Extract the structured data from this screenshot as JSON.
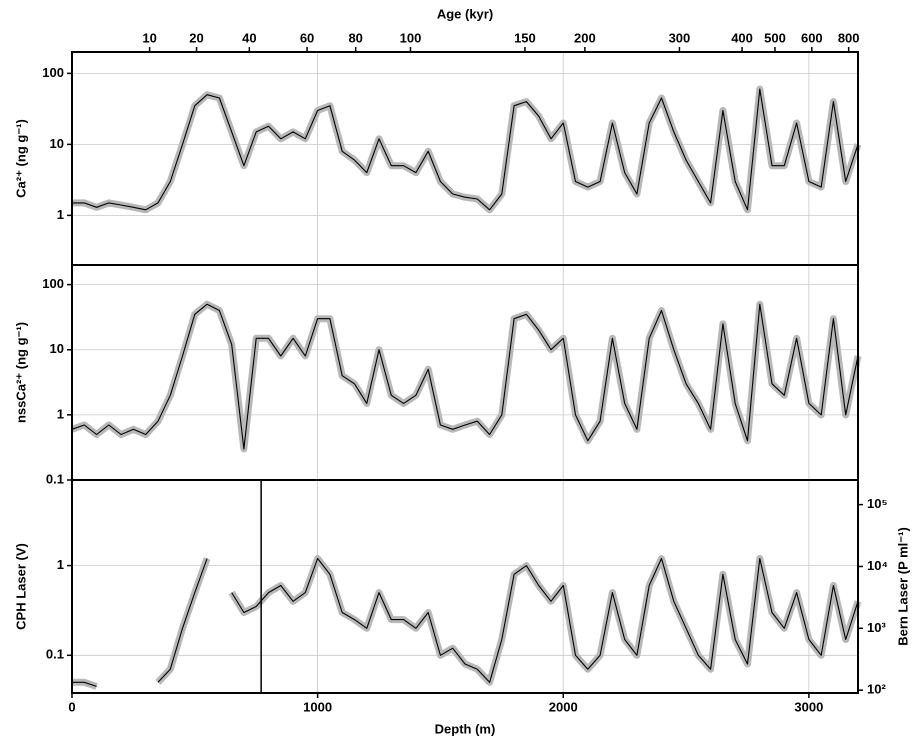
{
  "chart_data": [
    {
      "type": "line",
      "ylabel": "Ca²⁺ (ng g⁻¹)",
      "log": true,
      "grid": true,
      "color": "#000000",
      "band_color": "#b8b8b8",
      "x2label": "Age (kyr)",
      "x2ticks": [
        {
          "value": 316,
          "label": "10"
        },
        {
          "value": 507,
          "label": "20"
        },
        {
          "value": 722,
          "label": "40"
        },
        {
          "value": 957,
          "label": "60"
        },
        {
          "value": 1155,
          "label": "80"
        },
        {
          "value": 1378,
          "label": "100"
        },
        {
          "value": 1844,
          "label": "150"
        },
        {
          "value": 2088,
          "label": "200"
        },
        {
          "value": 2473,
          "label": "300"
        },
        {
          "value": 2728,
          "label": "400"
        },
        {
          "value": 2862,
          "label": "500"
        },
        {
          "value": 3012,
          "label": "600"
        },
        {
          "value": 3162,
          "label": "800"
        }
      ],
      "xlim": [
        0,
        3200
      ],
      "ylim": [
        0.2,
        200
      ],
      "yticks": [
        1,
        10,
        100
      ],
      "x": [
        0,
        50,
        100,
        150,
        200,
        250,
        300,
        350,
        400,
        450,
        500,
        550,
        600,
        650,
        700,
        750,
        800,
        850,
        900,
        950,
        1000,
        1050,
        1100,
        1150,
        1200,
        1250,
        1300,
        1350,
        1400,
        1450,
        1500,
        1550,
        1600,
        1650,
        1700,
        1750,
        1800,
        1850,
        1900,
        1950,
        2000,
        2050,
        2100,
        2150,
        2200,
        2250,
        2300,
        2350,
        2400,
        2450,
        2500,
        2550,
        2600,
        2650,
        2700,
        2750,
        2800,
        2850,
        2900,
        2950,
        3000,
        3050,
        3100,
        3150,
        3200
      ],
      "values": [
        1.5,
        1.5,
        1.3,
        1.5,
        1.4,
        1.3,
        1.2,
        1.5,
        3,
        10,
        35,
        50,
        45,
        15,
        5,
        15,
        18,
        12,
        15,
        12,
        30,
        35,
        8,
        6,
        4,
        12,
        5,
        5,
        4,
        8,
        3,
        2,
        1.8,
        1.7,
        1.2,
        2,
        35,
        40,
        25,
        12,
        20,
        3,
        2.5,
        3,
        20,
        4,
        2,
        20,
        45,
        15,
        6,
        3,
        1.5,
        30,
        3,
        1.2,
        60,
        5,
        5,
        20,
        3,
        2.5,
        40,
        3,
        10
      ]
    },
    {
      "type": "line",
      "ylabel": "nssCa²⁺ (ng g⁻¹)",
      "log": true,
      "grid": true,
      "color": "#000000",
      "band_color": "#b8b8b8",
      "xlim": [
        0,
        3200
      ],
      "ylim": [
        0.1,
        200
      ],
      "yticks": [
        0.1,
        1,
        10,
        100
      ],
      "x": [
        0,
        50,
        100,
        150,
        200,
        250,
        300,
        350,
        400,
        450,
        500,
        550,
        600,
        650,
        700,
        750,
        800,
        850,
        900,
        950,
        1000,
        1050,
        1100,
        1150,
        1200,
        1250,
        1300,
        1350,
        1400,
        1450,
        1500,
        1550,
        1600,
        1650,
        1700,
        1750,
        1800,
        1850,
        1900,
        1950,
        2000,
        2050,
        2100,
        2150,
        2200,
        2250,
        2300,
        2350,
        2400,
        2450,
        2500,
        2550,
        2600,
        2650,
        2700,
        2750,
        2800,
        2850,
        2900,
        2950,
        3000,
        3050,
        3100,
        3150,
        3200
      ],
      "values": [
        0.6,
        0.7,
        0.5,
        0.7,
        0.5,
        0.6,
        0.5,
        0.8,
        2,
        8,
        35,
        50,
        40,
        12,
        0.3,
        15,
        15,
        8,
        15,
        8,
        30,
        30,
        4,
        3,
        1.5,
        10,
        2,
        1.5,
        2,
        5,
        0.7,
        0.6,
        0.7,
        0.8,
        0.5,
        1,
        30,
        35,
        20,
        10,
        15,
        1,
        0.4,
        0.8,
        15,
        1.5,
        0.6,
        15,
        40,
        10,
        3,
        1.5,
        0.6,
        25,
        1.5,
        0.4,
        50,
        3,
        2,
        15,
        1.5,
        1,
        30,
        1,
        8
      ]
    },
    {
      "type": "line",
      "ylabel": "CPH Laser (V)",
      "log": true,
      "grid": true,
      "color": "#000000",
      "band_color": "#b8b8b8",
      "xlabel": "Depth (m)",
      "xlim": [
        0,
        3200
      ],
      "xticks": [
        0,
        1000,
        2000,
        3000
      ],
      "ylim": [
        0.038,
        9
      ],
      "yticks": [
        0.1,
        1
      ],
      "y2label": "Bern Laser (P ml⁻¹)",
      "y2lim": [
        90,
        250000
      ],
      "y2ticks": [
        {
          "value": 100,
          "label": "10²"
        },
        {
          "value": 1000,
          "label": "10³"
        },
        {
          "value": 10000,
          "label": "10⁴"
        },
        {
          "value": 100000,
          "label": "10⁵"
        }
      ],
      "divider_x": 770,
      "x": [
        0,
        50,
        100,
        150,
        200,
        250,
        300,
        350,
        400,
        450,
        500,
        550,
        600,
        650,
        700,
        750,
        800,
        850,
        900,
        950,
        1000,
        1050,
        1100,
        1150,
        1200,
        1250,
        1300,
        1350,
        1400,
        1450,
        1500,
        1550,
        1600,
        1650,
        1700,
        1750,
        1800,
        1850,
        1900,
        1950,
        2000,
        2050,
        2100,
        2150,
        2200,
        2250,
        2300,
        2350,
        2400,
        2450,
        2500,
        2550,
        2600,
        2650,
        2700,
        2750,
        2800,
        2850,
        2900,
        2950,
        3000,
        3050,
        3100,
        3150,
        3200
      ],
      "values": [
        0.05,
        0.05,
        0.045,
        null,
        null,
        null,
        null,
        0.05,
        0.07,
        0.2,
        0.5,
        1.2,
        null,
        0.5,
        0.3,
        0.35,
        0.5,
        0.6,
        0.4,
        0.5,
        1.2,
        0.8,
        0.3,
        0.25,
        0.2,
        0.5,
        0.25,
        0.25,
        0.2,
        0.3,
        0.1,
        0.12,
        0.08,
        0.07,
        0.05,
        0.15,
        0.8,
        1.0,
        0.6,
        0.4,
        0.6,
        0.1,
        0.07,
        0.1,
        0.5,
        0.15,
        0.1,
        0.6,
        1.2,
        0.4,
        0.2,
        0.1,
        0.07,
        0.8,
        0.15,
        0.08,
        1.2,
        0.3,
        0.2,
        0.5,
        0.15,
        0.1,
        0.6,
        0.15,
        0.4
      ]
    }
  ]
}
